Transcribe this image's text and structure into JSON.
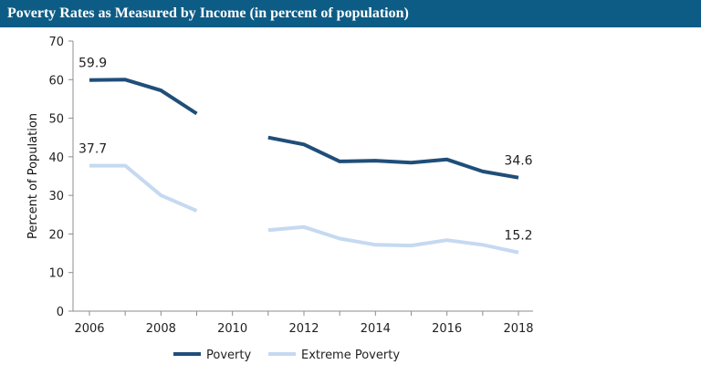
{
  "title": "Poverty Rates as Measured by Income (in percent of population)",
  "chart_data": {
    "type": "line",
    "title": "Poverty Rates as Measured by Income (in percent of population)",
    "xlabel": "",
    "ylabel": "Percent of Population",
    "ylim": [
      0,
      70
    ],
    "yticks": [
      0,
      10,
      20,
      30,
      40,
      50,
      60,
      70
    ],
    "xlim": [
      2006,
      2018
    ],
    "xticks": [
      2006,
      2008,
      2010,
      2012,
      2014,
      2016,
      2018
    ],
    "legend_position": "bottom",
    "series": [
      {
        "name": "Poverty",
        "color": "#1f4e79",
        "points": [
          [
            2006,
            59.9
          ],
          [
            2007,
            60.0
          ],
          [
            2008,
            57.2
          ],
          [
            2009,
            51.2
          ],
          [
            2011,
            45.0
          ],
          [
            2012,
            43.2
          ],
          [
            2013,
            38.8
          ],
          [
            2014,
            39.0
          ],
          [
            2015,
            38.5
          ],
          [
            2016,
            39.3
          ],
          [
            2017,
            36.2
          ],
          [
            2018,
            34.6
          ]
        ],
        "labels": [
          {
            "x": 2006,
            "text": "59.9"
          },
          {
            "x": 2018,
            "text": "34.6"
          }
        ]
      },
      {
        "name": "Extreme Poverty",
        "color": "#c5d9f1",
        "points": [
          [
            2006,
            37.7
          ],
          [
            2007,
            37.7
          ],
          [
            2008,
            30.0
          ],
          [
            2009,
            26.0
          ],
          [
            2011,
            21.0
          ],
          [
            2012,
            21.8
          ],
          [
            2013,
            18.8
          ],
          [
            2014,
            17.2
          ],
          [
            2015,
            17.0
          ],
          [
            2016,
            18.4
          ],
          [
            2017,
            17.2
          ],
          [
            2018,
            15.2
          ]
        ],
        "labels": [
          {
            "x": 2006,
            "text": "37.7"
          },
          {
            "x": 2018,
            "text": "15.2"
          }
        ]
      }
    ]
  }
}
